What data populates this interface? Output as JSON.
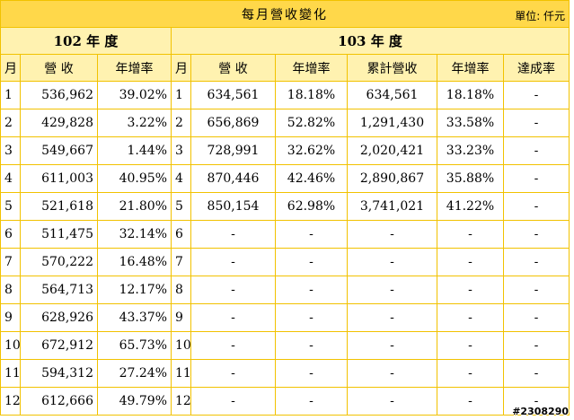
{
  "title": "每月營收變化",
  "unit": "單位: 仟元",
  "year_102": "102 年 度",
  "year_103": "103 年 度",
  "headers": {
    "month": "月",
    "revenue": "營 收",
    "yoy": "年增率",
    "cumulative": "累計營收",
    "achievement": "達成率"
  },
  "rows": [
    {
      "m102": "1",
      "rev102": "536,962",
      "yoy102": "39.02%",
      "m103": "1",
      "rev103": "634,561",
      "yoy103": "18.18%",
      "cum103": "634,561",
      "cumyoy103": "18.18%",
      "ach103": "-"
    },
    {
      "m102": "2",
      "rev102": "429,828",
      "yoy102": "3.22%",
      "m103": "2",
      "rev103": "656,869",
      "yoy103": "52.82%",
      "cum103": "1,291,430",
      "cumyoy103": "33.58%",
      "ach103": "-"
    },
    {
      "m102": "3",
      "rev102": "549,667",
      "yoy102": "1.44%",
      "m103": "3",
      "rev103": "728,991",
      "yoy103": "32.62%",
      "cum103": "2,020,421",
      "cumyoy103": "33.23%",
      "ach103": "-"
    },
    {
      "m102": "4",
      "rev102": "611,003",
      "yoy102": "40.95%",
      "m103": "4",
      "rev103": "870,446",
      "yoy103": "42.46%",
      "cum103": "2,890,867",
      "cumyoy103": "35.88%",
      "ach103": "-"
    },
    {
      "m102": "5",
      "rev102": "521,618",
      "yoy102": "21.80%",
      "m103": "5",
      "rev103": "850,154",
      "yoy103": "62.98%",
      "cum103": "3,741,021",
      "cumyoy103": "41.22%",
      "ach103": "-"
    },
    {
      "m102": "6",
      "rev102": "511,475",
      "yoy102": "32.14%",
      "m103": "6",
      "rev103": "-",
      "yoy103": "-",
      "cum103": "-",
      "cumyoy103": "-",
      "ach103": "-"
    },
    {
      "m102": "7",
      "rev102": "570,222",
      "yoy102": "16.48%",
      "m103": "7",
      "rev103": "-",
      "yoy103": "-",
      "cum103": "-",
      "cumyoy103": "-",
      "ach103": "-"
    },
    {
      "m102": "8",
      "rev102": "564,713",
      "yoy102": "12.17%",
      "m103": "8",
      "rev103": "-",
      "yoy103": "-",
      "cum103": "-",
      "cumyoy103": "-",
      "ach103": "-"
    },
    {
      "m102": "9",
      "rev102": "628,926",
      "yoy102": "43.37%",
      "m103": "9",
      "rev103": "-",
      "yoy103": "-",
      "cum103": "-",
      "cumyoy103": "-",
      "ach103": "-"
    },
    {
      "m102": "10",
      "rev102": "672,912",
      "yoy102": "65.73%",
      "m103": "10",
      "rev103": "-",
      "yoy103": "-",
      "cum103": "-",
      "cumyoy103": "-",
      "ach103": "-"
    },
    {
      "m102": "11",
      "rev102": "594,312",
      "yoy102": "27.24%",
      "m103": "11",
      "rev103": "-",
      "yoy103": "-",
      "cum103": "-",
      "cumyoy103": "-",
      "ach103": "-"
    },
    {
      "m102": "12",
      "rev102": "612,666",
      "yoy102": "49.79%",
      "m103": "12",
      "rev103": "-",
      "yoy103": "-",
      "cum103": "-",
      "cumyoy103": "-",
      "ach103": "-"
    }
  ],
  "watermark": "#2308290"
}
